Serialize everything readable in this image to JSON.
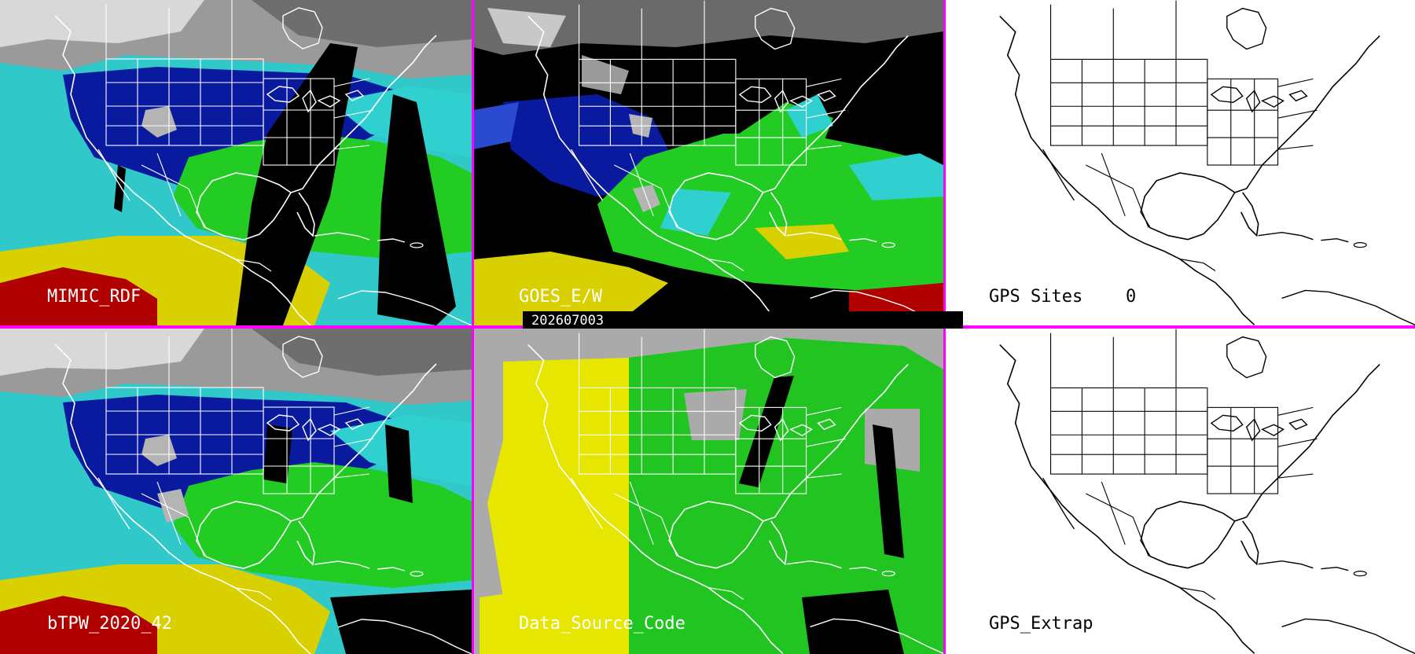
{
  "panels": [
    {
      "label": "MIMIC_RDF"
    },
    {
      "label": "GOES_E/W"
    },
    {
      "label": "GPS Sites",
      "count": "0"
    },
    {
      "label": "bTPW_2020_42"
    },
    {
      "label": "Data_Source_Code"
    },
    {
      "label": "GPS_Extrap"
    }
  ],
  "timestamp": "202607003",
  "colors": {
    "divider": "#ff00ff",
    "low_tpw": "#0a1a9e",
    "mid_tpw": "#22cc22",
    "high_tpw": "#d8d000",
    "max_tpw": "#b00000",
    "cyan": "#30d0d0",
    "source_yellow": "#e6e600",
    "source_green": "#22c422",
    "source_gray": "#aaaaaa"
  }
}
